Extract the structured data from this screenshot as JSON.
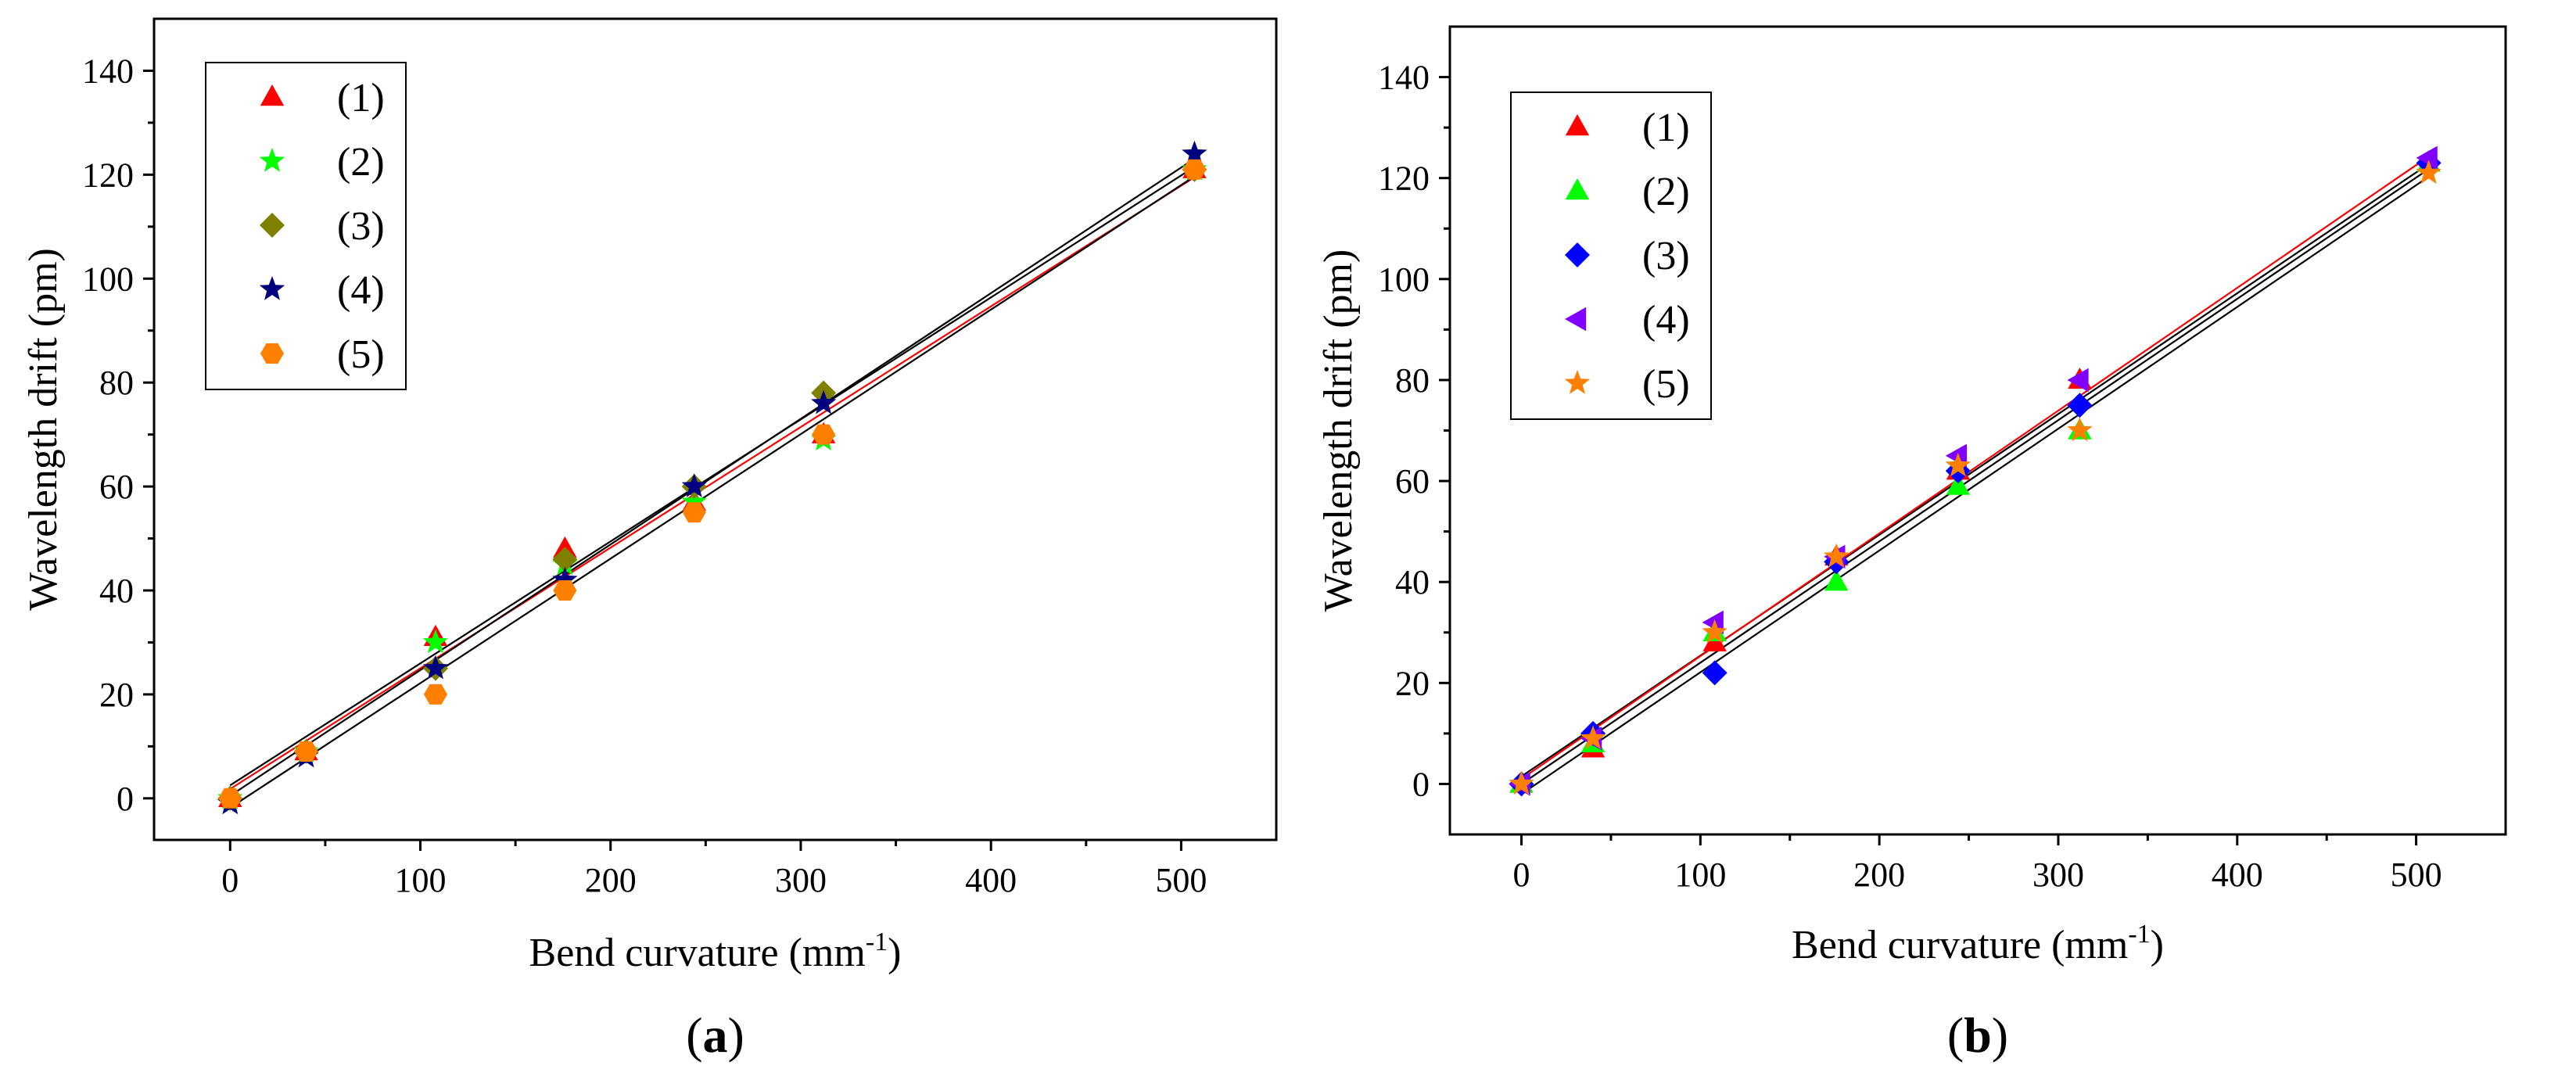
{
  "figure": {
    "panels": [
      "(a)",
      "(b)"
    ]
  },
  "chart_data": [
    {
      "type": "scatter",
      "panel_label_prefix": "(",
      "panel_label_letter": "a",
      "panel_label_suffix": ")",
      "xlabel": "Bend curvature (mm",
      "xlabel_sup": "-1",
      "xlabel_end": ")",
      "ylabel": "Wavelength drift (pm)",
      "xlim": [
        -40,
        550
      ],
      "ylim": [
        -8,
        150
      ],
      "xticks": [
        0,
        100,
        200,
        300,
        400,
        500
      ],
      "yticks": [
        0,
        20,
        40,
        60,
        80,
        100,
        120,
        140
      ],
      "legend_position": "top-left",
      "series": [
        {
          "name": "(1)",
          "marker": "triangle",
          "color": "#ff0000",
          "x": [
            0,
            40,
            108,
            176,
            244,
            312,
            507
          ],
          "y": [
            0,
            9,
            31,
            48,
            57,
            70,
            121
          ]
        },
        {
          "name": "(2)",
          "marker": "star",
          "color": "#00ff00",
          "x": [
            0,
            40,
            108,
            176,
            244,
            312,
            507
          ],
          "y": [
            0,
            9,
            30,
            45,
            57,
            69,
            121
          ]
        },
        {
          "name": "(3)",
          "marker": "diamond",
          "color": "#808000",
          "x": [
            0,
            40,
            108,
            176,
            244,
            312,
            507
          ],
          "y": [
            0,
            9,
            25,
            46,
            60,
            78,
            121
          ]
        },
        {
          "name": "(4)",
          "marker": "star",
          "color": "#000080",
          "x": [
            0,
            40,
            108,
            176,
            244,
            312,
            507
          ],
          "y": [
            -1,
            8,
            25,
            42,
            60,
            76,
            124
          ]
        },
        {
          "name": "(5)",
          "marker": "hexagon",
          "color": "#ff8000",
          "x": [
            0,
            40,
            108,
            176,
            244,
            312,
            507
          ],
          "y": [
            0,
            9,
            20,
            40,
            55,
            70,
            121
          ]
        }
      ],
      "fit_lines": [
        {
          "color": "#000000",
          "x": [
            0,
            510
          ],
          "y": [
            2.5,
            122.2
          ]
        },
        {
          "color": "#ff0000",
          "x": [
            0,
            510
          ],
          "y": [
            1.8,
            120.2
          ]
        },
        {
          "color": "#000000",
          "x": [
            0,
            510
          ],
          "y": [
            0.5,
            123.8
          ]
        },
        {
          "color": "#000000",
          "x": [
            0,
            510
          ],
          "y": [
            -1.8,
            120.4
          ]
        }
      ]
    },
    {
      "type": "scatter",
      "panel_label_prefix": "(",
      "panel_label_letter": "b",
      "panel_label_suffix": ")",
      "xlabel": "Bend curvature (mm",
      "xlabel_sup": "-1",
      "xlabel_end": ")",
      "ylabel": "Wavelength drift (pm)",
      "xlim": [
        -40,
        550
      ],
      "ylim": [
        -10,
        150
      ],
      "xticks": [
        0,
        100,
        200,
        300,
        400,
        500
      ],
      "yticks": [
        0,
        20,
        40,
        60,
        80,
        100,
        120,
        140
      ],
      "legend_position": "top-left",
      "series": [
        {
          "name": "(1)",
          "marker": "triangle",
          "color": "#ff0000",
          "x": [
            0,
            40,
            108,
            176,
            244,
            312,
            507
          ],
          "y": [
            0,
            7,
            28,
            45,
            62,
            80,
            123
          ]
        },
        {
          "name": "(2)",
          "marker": "triangle",
          "color": "#00ff00",
          "x": [
            0,
            40,
            108,
            176,
            244,
            312,
            507
          ],
          "y": [
            0,
            8,
            30,
            40,
            59,
            70,
            123
          ]
        },
        {
          "name": "(3)",
          "marker": "diamond",
          "color": "#0000ff",
          "x": [
            0,
            40,
            108,
            176,
            244,
            312,
            507
          ],
          "y": [
            0,
            10,
            22,
            44,
            62,
            75,
            123
          ]
        },
        {
          "name": "(4)",
          "marker": "triangle-left",
          "color": "#8000ff",
          "x": [
            0,
            40,
            108,
            176,
            244,
            312,
            507
          ],
          "y": [
            0,
            9,
            32,
            45,
            65,
            80,
            124
          ]
        },
        {
          "name": "(5)",
          "marker": "star",
          "color": "#ff8000",
          "x": [
            0,
            40,
            108,
            176,
            244,
            312,
            507
          ],
          "y": [
            0,
            9,
            30,
            45,
            63,
            70,
            121
          ]
        }
      ],
      "fit_lines": [
        {
          "color": "#000000",
          "x": [
            0,
            510
          ],
          "y": [
            1.5,
            123.5
          ]
        },
        {
          "color": "#ff0000",
          "x": [
            0,
            510
          ],
          "y": [
            1.0,
            125.0
          ]
        },
        {
          "color": "#000000",
          "x": [
            0,
            510
          ],
          "y": [
            0.0,
            122.5
          ]
        },
        {
          "color": "#000000",
          "x": [
            0,
            510
          ],
          "y": [
            -2.0,
            121.0
          ]
        }
      ]
    }
  ]
}
